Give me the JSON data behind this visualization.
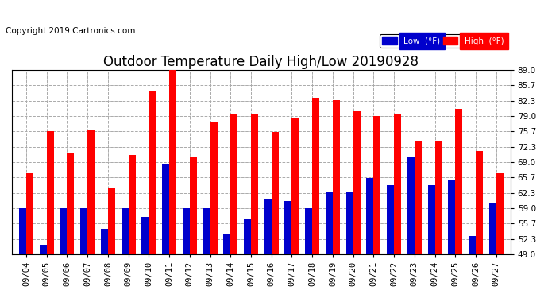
{
  "title": "Outdoor Temperature Daily High/Low 20190928",
  "copyright": "Copyright 2019 Cartronics.com",
  "dates": [
    "09/04",
    "09/05",
    "09/06",
    "09/07",
    "09/08",
    "09/09",
    "09/10",
    "09/11",
    "09/12",
    "09/13",
    "09/14",
    "09/15",
    "09/16",
    "09/17",
    "09/18",
    "09/19",
    "09/20",
    "09/21",
    "09/22",
    "09/23",
    "09/24",
    "09/25",
    "09/26",
    "09/27"
  ],
  "high": [
    66.5,
    75.7,
    71.0,
    76.0,
    63.5,
    70.5,
    84.5,
    89.0,
    70.2,
    77.8,
    79.3,
    79.3,
    75.5,
    78.5,
    83.0,
    82.5,
    80.0,
    79.0,
    79.5,
    73.5,
    73.5,
    80.5,
    71.5,
    66.5
  ],
  "low": [
    59.0,
    51.0,
    59.0,
    59.0,
    54.5,
    59.0,
    57.0,
    68.5,
    59.0,
    59.0,
    53.5,
    56.5,
    61.0,
    60.5,
    59.0,
    62.5,
    62.5,
    65.5,
    64.0,
    70.0,
    64.0,
    65.0,
    53.0,
    60.0
  ],
  "ylim": [
    49.0,
    89.0
  ],
  "yticks": [
    49.0,
    52.3,
    55.7,
    59.0,
    62.3,
    65.7,
    69.0,
    72.3,
    75.7,
    79.0,
    82.3,
    85.7,
    89.0
  ],
  "bar_width": 0.35,
  "high_color": "#ff0000",
  "low_color": "#0000cc",
  "bg_color": "#ffffff",
  "grid_color": "#aaaaaa",
  "title_fontsize": 12,
  "tick_fontsize": 7.5,
  "copyright_fontsize": 7.5
}
